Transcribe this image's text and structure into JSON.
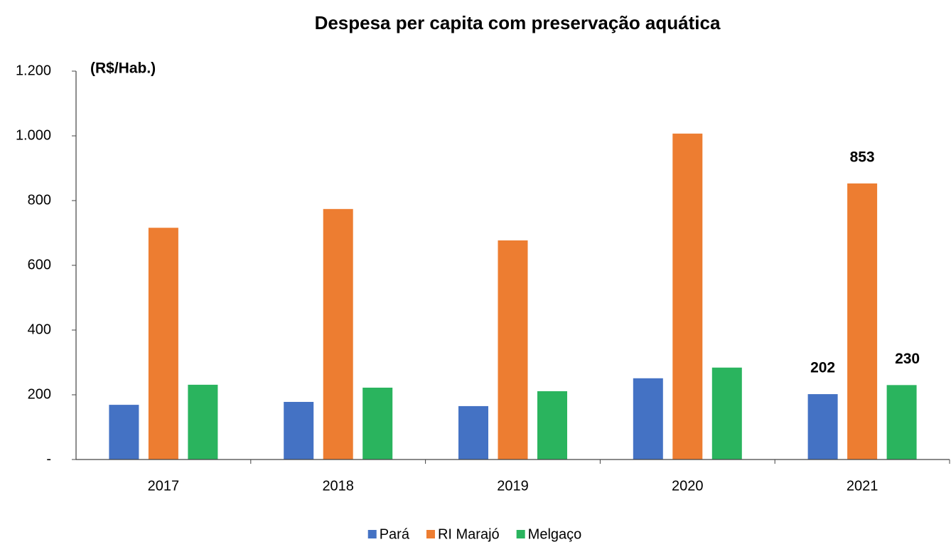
{
  "chart_data": {
    "type": "bar",
    "title": "Despesa per capita com preservação aquática",
    "y_axis_label": "(R$/Hab.)",
    "categories": [
      "2017",
      "2018",
      "2019",
      "2020",
      "2021"
    ],
    "series": [
      {
        "name": "Pará",
        "color": "#4472c4",
        "values": [
          169,
          178,
          165,
          251,
          202
        ],
        "value_labels": [
          null,
          null,
          null,
          null,
          "202"
        ]
      },
      {
        "name": "RI Marajó",
        "color": "#ed7d31",
        "values": [
          716,
          774,
          677,
          1007,
          853
        ],
        "value_labels": [
          null,
          null,
          null,
          null,
          "853"
        ]
      },
      {
        "name": "Melgaço",
        "color": "#2ab45e",
        "values": [
          231,
          222,
          211,
          284,
          230
        ],
        "value_labels": [
          null,
          null,
          null,
          null,
          "230"
        ]
      }
    ],
    "ylim": [
      0,
      1200
    ],
    "yticks": [
      {
        "value": 0,
        "label": "-"
      },
      200,
      400,
      600,
      800,
      {
        "value": 1000,
        "label": "1.000"
      },
      {
        "value": 1200,
        "label": "1.200"
      }
    ],
    "grid": false,
    "legend": "bottom"
  }
}
